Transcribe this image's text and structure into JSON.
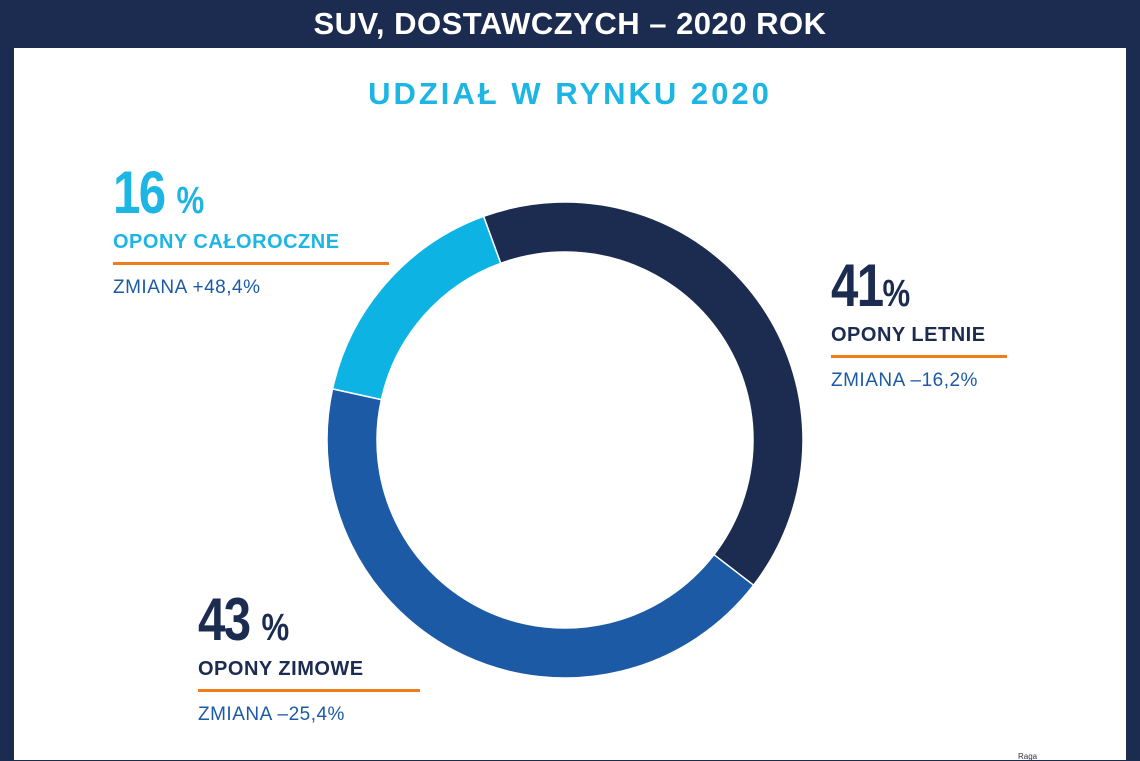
{
  "header": {
    "title": "SUV, DOSTAWCZYCH – 2020 ROK"
  },
  "chart_data": {
    "type": "pie",
    "title": "UDZIAŁ W RYNKU 2020",
    "donut": true,
    "slices": [
      {
        "label": "OPONY LETNIE",
        "value": 41,
        "value_text": "41",
        "unit": "%",
        "change": "ZMIANA –16,2%",
        "color": "#1c2b50"
      },
      {
        "label": "OPONY ZIMOWE",
        "value": 43,
        "value_text": "43 ",
        "unit": "%",
        "change": "ZMIANA –25,4%",
        "color": "#1c5aa6"
      },
      {
        "label": "OPONY CAŁOROCZNE",
        "value": 16,
        "value_text": "16 ",
        "unit": "%",
        "change": "ZMIANA +48,4%",
        "color": "#0db4e3"
      }
    ],
    "accent_color": "#f07d1a"
  },
  "footer": {
    "corner_text": "Raga"
  }
}
